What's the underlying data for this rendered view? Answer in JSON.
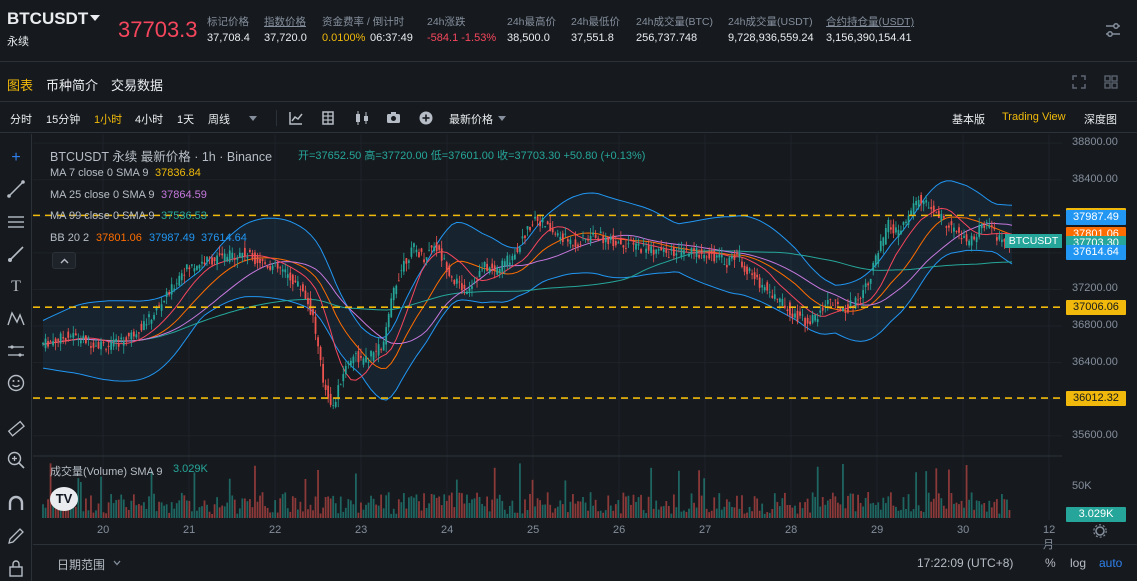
{
  "header": {
    "symbol": "BTCUSDT",
    "contract_type": "永续",
    "last_price": "37703.3",
    "stats": [
      {
        "label": "标记价格",
        "value": "37,708.4"
      },
      {
        "label": "指数价格",
        "value": "37,720.0"
      },
      {
        "label": "资金费率 / 倒计时",
        "value": "0.0100%",
        "value2": "06:37:49"
      },
      {
        "label": "24h涨跌",
        "value": "-584.1 -1.53%"
      },
      {
        "label": "24h最高价",
        "value": "38,500.0"
      },
      {
        "label": "24h最低价",
        "value": "37,551.8"
      },
      {
        "label": "24h成交量(BTC)",
        "value": "256,737.748"
      },
      {
        "label": "24h成交量(USDT)",
        "value": "9,728,936,559.24"
      },
      {
        "label": "合约持仓量(USDT)",
        "value": "3,156,390,154.41"
      }
    ]
  },
  "tabs": [
    "图表",
    "币种简介",
    "交易数据"
  ],
  "toolbar": {
    "intervals": [
      "分时",
      "15分钟",
      "1小时",
      "4小时",
      "1天",
      "周线"
    ],
    "active_interval": "1小时",
    "price_type": "最新价格",
    "views": [
      "基本版",
      "Trading View",
      "深度图"
    ],
    "active_view": "Trading View"
  },
  "legend": {
    "title": "BTCUSDT 永续 最新价格 · 1h · Binance",
    "ohlc": "开=37652.50 高=37720.00 低=37601.00 收=37703.30 +50.80 (+0.13%)",
    "ma7": {
      "label": "MA 7 close 0 SMA 9",
      "value": "37836.84"
    },
    "ma25": {
      "label": "MA 25 close 0 SMA 9",
      "value": "37864.59"
    },
    "ma99": {
      "label": "MA 99 close 0 SMA 9",
      "value": "37536.53"
    },
    "bb": {
      "label": "BB 20 2",
      "v1": "37801.06",
      "v2": "37987.49",
      "v3": "37614.64"
    },
    "volume": {
      "label": "成交量(Volume) SMA 9",
      "value": "3.029K"
    }
  },
  "chart_data": {
    "type": "line",
    "y_ticks": [
      "38800.00",
      "38400.00",
      "38000.00",
      "37600.00",
      "37200.00",
      "36800.00",
      "36400.00",
      "36000.00",
      "35600.00"
    ],
    "ylim": [
      35400,
      38900
    ],
    "x_ticks": [
      "20",
      "21",
      "22",
      "23",
      "24",
      "25",
      "26",
      "27",
      "28",
      "29",
      "30",
      "12月"
    ],
    "price_labels": [
      {
        "value": "38010.07",
        "color": "#f0b90b"
      },
      {
        "value": "37987.49",
        "color": "#2196f3"
      },
      {
        "value": "37801.06",
        "color": "#ff6d00"
      },
      {
        "value": "37703.30",
        "color": "#26a69a"
      },
      {
        "value": "37614.64",
        "color": "#2196f3"
      },
      {
        "value": "37006.06",
        "color": "#f0b90b"
      },
      {
        "value": "36012.32",
        "color": "#f0b90b"
      }
    ],
    "hlines": [
      38010.07,
      37006.06,
      36012.32
    ],
    "symbol_tag": "BTCUSDT",
    "volume_ticks": [
      "50K"
    ],
    "volume_tag": "3.029K",
    "series": [
      {
        "name": "MA 7",
        "color": "#f6465d"
      },
      {
        "name": "MA 25",
        "color": "#c678dd"
      },
      {
        "name": "MA 99",
        "color": "#26a69a"
      },
      {
        "name": "BB 20 2",
        "color": "#2196f3"
      }
    ],
    "price_path": [
      [
        0,
        36600
      ],
      [
        3,
        36700
      ],
      [
        5,
        36620
      ],
      [
        7,
        36580
      ],
      [
        9,
        36700
      ],
      [
        11,
        36900
      ],
      [
        13,
        37200
      ],
      [
        14,
        37400
      ],
      [
        16,
        37500
      ],
      [
        18,
        37550
      ],
      [
        20,
        37600
      ],
      [
        22,
        37500
      ],
      [
        24,
        37400
      ],
      [
        26,
        37200
      ],
      [
        27,
        36900
      ],
      [
        28,
        36200
      ],
      [
        29,
        35900
      ],
      [
        30,
        36300
      ],
      [
        31,
        36500
      ],
      [
        32,
        36400
      ],
      [
        34,
        36600
      ],
      [
        35,
        37200
      ],
      [
        36,
        37500
      ],
      [
        37,
        37650
      ],
      [
        38,
        37550
      ],
      [
        39,
        37700
      ],
      [
        40,
        37500
      ],
      [
        41,
        37300
      ],
      [
        42,
        37200
      ],
      [
        43,
        37300
      ],
      [
        44,
        37450
      ],
      [
        45,
        37400
      ],
      [
        46,
        37500
      ],
      [
        47,
        37600
      ],
      [
        48,
        37800
      ],
      [
        49,
        38000
      ],
      [
        50,
        37900
      ],
      [
        51,
        37800
      ],
      [
        52,
        37750
      ],
      [
        53,
        37700
      ],
      [
        55,
        37800
      ],
      [
        56,
        37750
      ],
      [
        58,
        37700
      ],
      [
        60,
        37650
      ],
      [
        62,
        37600
      ],
      [
        64,
        37600
      ],
      [
        66,
        37600
      ],
      [
        68,
        37500
      ],
      [
        69,
        37600
      ],
      [
        70,
        37400
      ],
      [
        71,
        37300
      ],
      [
        72,
        37200
      ],
      [
        73,
        37100
      ],
      [
        74,
        37000
      ],
      [
        75,
        36900
      ],
      [
        76,
        36850
      ],
      [
        77,
        36900
      ],
      [
        78,
        37100
      ],
      [
        79,
        37000
      ],
      [
        80,
        37000
      ],
      [
        81,
        37100
      ],
      [
        82,
        37300
      ],
      [
        83,
        37600
      ],
      [
        84,
        37900
      ],
      [
        85,
        37800
      ],
      [
        86,
        38000
      ],
      [
        87,
        38200
      ],
      [
        88,
        38100
      ],
      [
        89,
        38000
      ],
      [
        90,
        37900
      ],
      [
        91,
        37800
      ],
      [
        92,
        37700
      ],
      [
        93,
        37850
      ],
      [
        94,
        37900
      ],
      [
        95,
        37750
      ],
      [
        96,
        37700
      ]
    ]
  },
  "bottom": {
    "date_range": "日期范围",
    "time": "17:22:09 (UTC+8)",
    "percent": "%",
    "log": "log",
    "auto": "auto"
  }
}
